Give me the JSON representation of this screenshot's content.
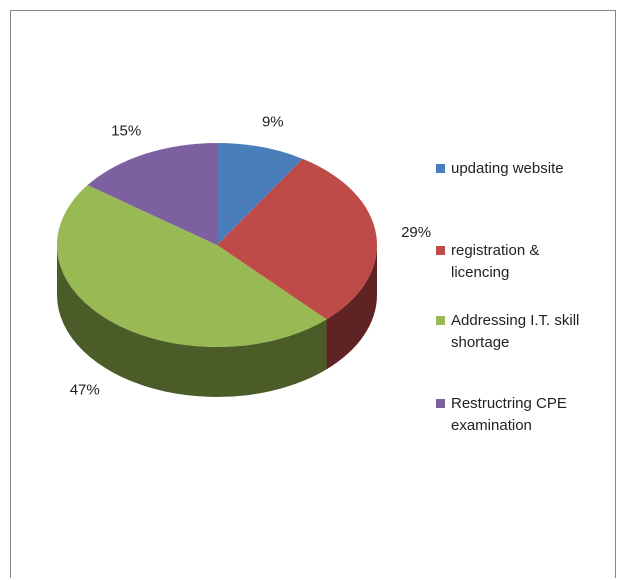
{
  "chart_data": {
    "type": "pie",
    "categories": [
      "updating website",
      "registration & licencing",
      "Addressing I.T. skill shortage",
      "Restructring CPE examination"
    ],
    "values": [
      9,
      29,
      47,
      15
    ],
    "value_labels": [
      "9%",
      "29%",
      "47%",
      "15%"
    ],
    "colors": [
      "#4a7ebb",
      "#be4b48",
      "#98b954",
      "#7d60a0"
    ],
    "side_colors": [
      "#2c4d74",
      "#5e2322",
      "#4b5c28",
      "#3e2f50"
    ],
    "legend": "right"
  }
}
